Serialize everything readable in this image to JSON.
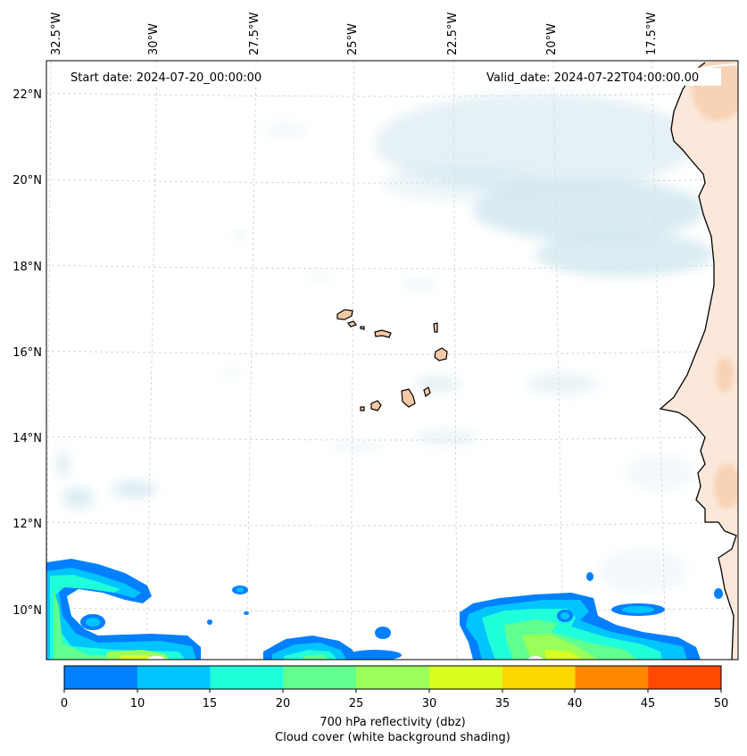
{
  "map": {
    "start_date": "Start date: 2024-07-20_00:00:00",
    "valid_date": "Valid_date: 2024-07-22T04:00:00.00",
    "lon_labels": [
      "32.5°W",
      "30°W",
      "27.5°W",
      "25°W",
      "22.5°W",
      "20°W",
      "17.5°W"
    ],
    "lat_labels": [
      "22°N",
      "20°N",
      "18°N",
      "16°N",
      "14°N",
      "12°N",
      "10°N"
    ],
    "land_color": "#f6c9a6",
    "cloud_color": "#cfe6ee"
  },
  "colorbar": {
    "ticks": [
      "0",
      "10",
      "15",
      "20",
      "25",
      "30",
      "35",
      "40",
      "45",
      "50"
    ],
    "colors": [
      "#0080ff",
      "#00c4ff",
      "#1fffd9",
      "#60ff90",
      "#9aff58",
      "#d8ff20",
      "#ffd800",
      "#ff8800",
      "#ff4800"
    ],
    "label_line1": "700 hPa reflectivity (dbz)",
    "label_line2": "Cloud cover (white background shading)"
  }
}
